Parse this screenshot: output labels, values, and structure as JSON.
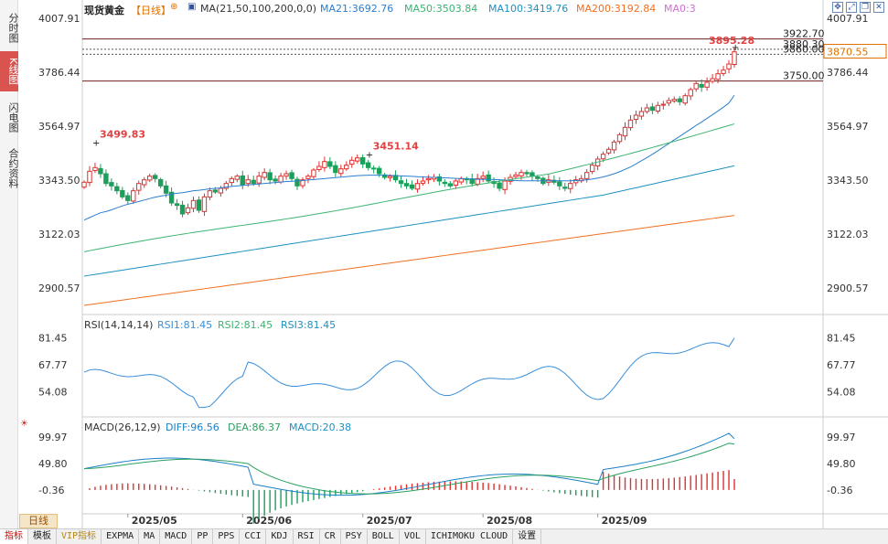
{
  "left_tabs": [
    {
      "label": "分时图",
      "active": false
    },
    {
      "label": "K线图",
      "active": true
    },
    {
      "label": "闪电图",
      "active": false
    },
    {
      "label": "合约资料",
      "active": false
    }
  ],
  "header": {
    "symbol": "现货黄金",
    "period": "【日线】",
    "ma_label": "MA(21,50,100,200,0,0)",
    "ma21": "MA21:3692.76",
    "ma50": "MA50:3503.84",
    "ma100": "MA100:3419.76",
    "ma200": "MA200:3192.84",
    "ma0": "MA0:3"
  },
  "window_icons": [
    "move-icon",
    "expand-icon",
    "restore-icon",
    "close-icon"
  ],
  "price_axis": {
    "ticks": [
      4007.91,
      3786.44,
      3564.97,
      3343.5,
      3122.03,
      2900.57
    ],
    "ymin": 2800,
    "ymax": 4030
  },
  "price_markers": {
    "current_label": "3870.55",
    "high_label": "3895.28",
    "levels": [
      {
        "label": "3922.70",
        "value": 3922.7
      },
      {
        "label": "3880.30",
        "value": 3880.3
      },
      {
        "label": "3860.00",
        "value": 3860.0
      },
      {
        "label": "3750.00",
        "value": 3750.0
      }
    ],
    "annotations": [
      {
        "label": "3499.83",
        "value": 3499.83,
        "index": 2
      },
      {
        "label": "3451.14",
        "value": 3451.14,
        "index": 52
      }
    ]
  },
  "rsi": {
    "label": "RSI(14,14,14)",
    "rsi1": "RSI1:81.45",
    "rsi2": "RSI2:81.45",
    "rsi3": "RSI3:81.45",
    "ticks": [
      81.45,
      67.77,
      54.08
    ],
    "ymin": 43,
    "ymax": 86
  },
  "macd": {
    "label": "MACD(26,12,9)",
    "diff": "DIFF:96.56",
    "dea": "DEA:86.37",
    "macd": "MACD:20.38",
    "ticks": [
      99.97,
      49.8,
      -0.36
    ],
    "ymin": -45,
    "ymax": 110
  },
  "x_axis": {
    "months": [
      {
        "label": "2025/05",
        "index": 8
      },
      {
        "label": "2025/06",
        "index": 29
      },
      {
        "label": "2025/07",
        "index": 51
      },
      {
        "label": "2025/08",
        "index": 73
      },
      {
        "label": "2025/09",
        "index": 94
      }
    ]
  },
  "period_button": "日线",
  "toolbar": [
    "指标",
    "模板",
    "VIP指标",
    "EXPMA",
    "MA",
    "MACD",
    "PP",
    "PPS",
    "CCI",
    "KDJ",
    "RSI",
    "CR",
    "PSY",
    "BOLL",
    "VOL",
    "ICHIMOKU CLOUD",
    "设置"
  ],
  "colors": {
    "up": "#e03030",
    "down": "#1aa05a",
    "ma21": "#2b7fd0",
    "ma50": "#3cb371",
    "ma100": "#1e90c0",
    "ma200": "#f07020",
    "rsi_line": "#3a8fd8",
    "diff": "#1a7fc8",
    "dea": "#2aa060"
  },
  "chart_data": {
    "type": "candlestick",
    "title": "现货黄金",
    "closes": [
      3335,
      3380,
      3395,
      3370,
      3330,
      3320,
      3300,
      3275,
      3260,
      3300,
      3330,
      3345,
      3360,
      3350,
      3320,
      3290,
      3250,
      3240,
      3205,
      3230,
      3260,
      3220,
      3275,
      3300,
      3295,
      3310,
      3330,
      3350,
      3360,
      3325,
      3345,
      3330,
      3360,
      3375,
      3345,
      3340,
      3360,
      3370,
      3350,
      3320,
      3345,
      3360,
      3385,
      3400,
      3420,
      3400,
      3375,
      3390,
      3405,
      3425,
      3435,
      3410,
      3395,
      3390,
      3370,
      3355,
      3360,
      3345,
      3330,
      3320,
      3310,
      3330,
      3340,
      3350,
      3355,
      3340,
      3330,
      3320,
      3340,
      3350,
      3345,
      3330,
      3350,
      3360,
      3340,
      3330,
      3310,
      3340,
      3355,
      3365,
      3375,
      3370,
      3360,
      3350,
      3330,
      3345,
      3335,
      3320,
      3310,
      3330,
      3345,
      3350,
      3375,
      3405,
      3430,
      3450,
      3470,
      3500,
      3530,
      3560,
      3590,
      3610,
      3625,
      3640,
      3630,
      3650,
      3655,
      3670,
      3675,
      3665,
      3690,
      3715,
      3740,
      3725,
      3745,
      3760,
      3780,
      3795,
      3820,
      3870
    ],
    "ma21": [
      3180,
      3190,
      3200,
      3210,
      3215,
      3222,
      3230,
      3238,
      3245,
      3250,
      3256,
      3262,
      3268,
      3274,
      3278,
      3282,
      3286,
      3290,
      3292,
      3296,
      3300,
      3302,
      3305,
      3308,
      3310,
      3312,
      3315,
      3318,
      3320,
      3322,
      3324,
      3326,
      3328,
      3330,
      3332,
      3334,
      3336,
      3338,
      3339,
      3340,
      3342,
      3344,
      3346,
      3348,
      3350,
      3352,
      3354,
      3356,
      3358,
      3360,
      3362,
      3363,
      3364,
      3364,
      3364,
      3364,
      3363,
      3362,
      3361,
      3360,
      3359,
      3358,
      3357,
      3356,
      3355,
      3354,
      3353,
      3352,
      3351,
      3350,
      3349,
      3348,
      3347,
      3347,
      3347,
      3346,
      3345,
      3344,
      3343,
      3342,
      3341,
      3341,
      3341,
      3341,
      3341,
      3341,
      3341,
      3341,
      3341,
      3341,
      3342,
      3343,
      3345,
      3348,
      3352,
      3357,
      3363,
      3370,
      3378,
      3388,
      3398,
      3410,
      3423,
      3436,
      3450,
      3464,
      3479,
      3494,
      3509,
      3523,
      3538,
      3553,
      3568,
      3582,
      3597,
      3612,
      3627,
      3643,
      3660,
      3692
    ]
  }
}
